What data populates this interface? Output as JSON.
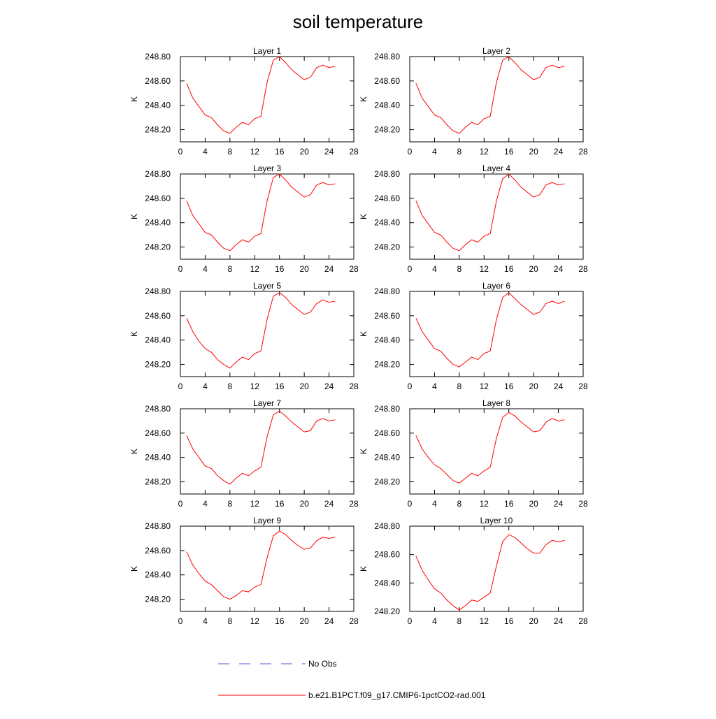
{
  "title": "soil temperature",
  "legend": [
    {
      "label": "No Obs",
      "color": "#5a5ad2",
      "dash": true
    },
    {
      "label": "b.e21.B1PCT.f09_g17.CMIP6-1pctCO2-rad.001",
      "color": "#ff0000",
      "dash": false
    }
  ],
  "chart_data": [
    {
      "type": "line",
      "title": "Layer 1",
      "y_label": "K",
      "x": [
        1,
        2,
        3,
        4,
        5,
        6,
        7,
        8,
        9,
        10,
        11,
        12,
        13,
        14,
        15,
        16,
        17,
        18,
        19,
        20,
        21,
        22,
        23,
        24,
        25
      ],
      "series": [
        {
          "color": "#ff0000",
          "values": [
            248.58,
            248.46,
            248.39,
            248.32,
            248.3,
            248.24,
            248.19,
            248.17,
            248.22,
            248.26,
            248.24,
            248.29,
            248.31,
            248.59,
            248.77,
            248.8,
            248.75,
            248.69,
            248.65,
            248.61,
            248.63,
            248.71,
            248.73,
            248.71,
            248.72
          ]
        }
      ],
      "xlim": [
        0,
        28
      ],
      "xticks": [
        0,
        4,
        8,
        12,
        16,
        20,
        24,
        28
      ],
      "ylim": [
        248.1,
        248.8
      ],
      "yticks": [
        {
          "value": 248.2,
          "label": "248.20"
        },
        {
          "value": 248.4,
          "label": "248.40"
        },
        {
          "value": 248.6,
          "label": "248.60"
        },
        {
          "value": 248.8,
          "label": "248.80"
        }
      ]
    },
    {
      "type": "line",
      "title": "Layer 2",
      "y_label": "K",
      "x": [
        1,
        2,
        3,
        4,
        5,
        6,
        7,
        8,
        9,
        10,
        11,
        12,
        13,
        14,
        15,
        16,
        17,
        18,
        19,
        20,
        21,
        22,
        23,
        24,
        25
      ],
      "series": [
        {
          "color": "#ff0000",
          "values": [
            248.58,
            248.46,
            248.39,
            248.32,
            248.3,
            248.24,
            248.19,
            248.17,
            248.22,
            248.26,
            248.24,
            248.29,
            248.31,
            248.59,
            248.77,
            248.8,
            248.75,
            248.69,
            248.65,
            248.61,
            248.63,
            248.71,
            248.73,
            248.71,
            248.72
          ]
        }
      ],
      "xlim": [
        0,
        28
      ],
      "xticks": [
        0,
        4,
        8,
        12,
        16,
        20,
        24,
        28
      ],
      "ylim": [
        248.1,
        248.8
      ],
      "yticks": [
        {
          "value": 248.2,
          "label": "248.20"
        },
        {
          "value": 248.4,
          "label": "248.40"
        },
        {
          "value": 248.6,
          "label": "248.60"
        },
        {
          "value": 248.8,
          "label": "248.80"
        }
      ]
    },
    {
      "type": "line",
      "title": "Layer 3",
      "y_label": "K",
      "x": [
        1,
        2,
        3,
        4,
        5,
        6,
        7,
        8,
        9,
        10,
        11,
        12,
        13,
        14,
        15,
        16,
        17,
        18,
        19,
        20,
        21,
        22,
        23,
        24,
        25
      ],
      "series": [
        {
          "color": "#ff0000",
          "values": [
            248.58,
            248.46,
            248.39,
            248.32,
            248.3,
            248.24,
            248.19,
            248.17,
            248.22,
            248.26,
            248.24,
            248.29,
            248.31,
            248.58,
            248.77,
            248.8,
            248.75,
            248.69,
            248.65,
            248.61,
            248.63,
            248.71,
            248.73,
            248.71,
            248.72
          ]
        }
      ],
      "xlim": [
        0,
        28
      ],
      "xticks": [
        0,
        4,
        8,
        12,
        16,
        20,
        24,
        28
      ],
      "ylim": [
        248.1,
        248.8
      ],
      "yticks": [
        {
          "value": 248.2,
          "label": "248.20"
        },
        {
          "value": 248.4,
          "label": "248.40"
        },
        {
          "value": 248.6,
          "label": "248.60"
        },
        {
          "value": 248.8,
          "label": "248.80"
        }
      ]
    },
    {
      "type": "line",
      "title": "Layer 4",
      "y_label": "K",
      "x": [
        1,
        2,
        3,
        4,
        5,
        6,
        7,
        8,
        9,
        10,
        11,
        12,
        13,
        14,
        15,
        16,
        17,
        18,
        19,
        20,
        21,
        22,
        23,
        24,
        25
      ],
      "series": [
        {
          "color": "#ff0000",
          "values": [
            248.58,
            248.46,
            248.39,
            248.32,
            248.3,
            248.24,
            248.19,
            248.17,
            248.22,
            248.26,
            248.24,
            248.29,
            248.31,
            248.58,
            248.76,
            248.8,
            248.75,
            248.69,
            248.65,
            248.61,
            248.63,
            248.71,
            248.73,
            248.71,
            248.72
          ]
        }
      ],
      "xlim": [
        0,
        28
      ],
      "xticks": [
        0,
        4,
        8,
        12,
        16,
        20,
        24,
        28
      ],
      "ylim": [
        248.1,
        248.8
      ],
      "yticks": [
        {
          "value": 248.2,
          "label": "248.20"
        },
        {
          "value": 248.4,
          "label": "248.40"
        },
        {
          "value": 248.6,
          "label": "248.60"
        },
        {
          "value": 248.8,
          "label": "248.80"
        }
      ]
    },
    {
      "type": "line",
      "title": "Layer 5",
      "y_label": "K",
      "x": [
        1,
        2,
        3,
        4,
        5,
        6,
        7,
        8,
        9,
        10,
        11,
        12,
        13,
        14,
        15,
        16,
        17,
        18,
        19,
        20,
        21,
        22,
        23,
        24,
        25
      ],
      "series": [
        {
          "color": "#ff0000",
          "values": [
            248.58,
            248.47,
            248.39,
            248.33,
            248.3,
            248.24,
            248.2,
            248.17,
            248.22,
            248.26,
            248.24,
            248.29,
            248.31,
            248.57,
            248.76,
            248.79,
            248.75,
            248.69,
            248.65,
            248.61,
            248.63,
            248.7,
            248.73,
            248.71,
            248.72
          ]
        }
      ],
      "xlim": [
        0,
        28
      ],
      "xticks": [
        0,
        4,
        8,
        12,
        16,
        20,
        24,
        28
      ],
      "ylim": [
        248.1,
        248.8
      ],
      "yticks": [
        {
          "value": 248.2,
          "label": "248.20"
        },
        {
          "value": 248.4,
          "label": "248.40"
        },
        {
          "value": 248.6,
          "label": "248.60"
        },
        {
          "value": 248.8,
          "label": "248.80"
        }
      ]
    },
    {
      "type": "line",
      "title": "Layer 6",
      "y_label": "K",
      "x": [
        1,
        2,
        3,
        4,
        5,
        6,
        7,
        8,
        9,
        10,
        11,
        12,
        13,
        14,
        15,
        16,
        17,
        18,
        19,
        20,
        21,
        22,
        23,
        24,
        25
      ],
      "series": [
        {
          "color": "#ff0000",
          "values": [
            248.58,
            248.47,
            248.4,
            248.33,
            248.31,
            248.25,
            248.2,
            248.18,
            248.22,
            248.26,
            248.24,
            248.29,
            248.31,
            248.57,
            248.75,
            248.79,
            248.74,
            248.69,
            248.65,
            248.61,
            248.63,
            248.7,
            248.72,
            248.7,
            248.72
          ]
        }
      ],
      "xlim": [
        0,
        28
      ],
      "xticks": [
        0,
        4,
        8,
        12,
        16,
        20,
        24,
        28
      ],
      "ylim": [
        248.1,
        248.8
      ],
      "yticks": [
        {
          "value": 248.2,
          "label": "248.20"
        },
        {
          "value": 248.4,
          "label": "248.40"
        },
        {
          "value": 248.6,
          "label": "248.60"
        },
        {
          "value": 248.8,
          "label": "248.80"
        }
      ]
    },
    {
      "type": "line",
      "title": "Layer 7",
      "y_label": "K",
      "x": [
        1,
        2,
        3,
        4,
        5,
        6,
        7,
        8,
        9,
        10,
        11,
        12,
        13,
        14,
        15,
        16,
        17,
        18,
        19,
        20,
        21,
        22,
        23,
        24,
        25
      ],
      "series": [
        {
          "color": "#ff0000",
          "values": [
            248.58,
            248.47,
            248.4,
            248.33,
            248.31,
            248.25,
            248.21,
            248.18,
            248.23,
            248.27,
            248.25,
            248.29,
            248.32,
            248.57,
            248.75,
            248.78,
            248.74,
            248.69,
            248.65,
            248.61,
            248.62,
            248.7,
            248.72,
            248.7,
            248.71
          ]
        }
      ],
      "xlim": [
        0,
        28
      ],
      "xticks": [
        0,
        4,
        8,
        12,
        16,
        20,
        24,
        28
      ],
      "ylim": [
        248.1,
        248.8
      ],
      "yticks": [
        {
          "value": 248.2,
          "label": "248.20"
        },
        {
          "value": 248.4,
          "label": "248.40"
        },
        {
          "value": 248.6,
          "label": "248.60"
        },
        {
          "value": 248.8,
          "label": "248.80"
        }
      ]
    },
    {
      "type": "line",
      "title": "Layer 8",
      "y_label": "K",
      "x": [
        1,
        2,
        3,
        4,
        5,
        6,
        7,
        8,
        9,
        10,
        11,
        12,
        13,
        14,
        15,
        16,
        17,
        18,
        19,
        20,
        21,
        22,
        23,
        24,
        25
      ],
      "series": [
        {
          "color": "#ff0000",
          "values": [
            248.58,
            248.47,
            248.4,
            248.34,
            248.31,
            248.26,
            248.21,
            248.19,
            248.23,
            248.27,
            248.25,
            248.29,
            248.32,
            248.56,
            248.73,
            248.77,
            248.74,
            248.69,
            248.65,
            248.61,
            248.62,
            248.69,
            248.72,
            248.7,
            248.71
          ]
        }
      ],
      "xlim": [
        0,
        28
      ],
      "xticks": [
        0,
        4,
        8,
        12,
        16,
        20,
        24,
        28
      ],
      "ylim": [
        248.1,
        248.8
      ],
      "yticks": [
        {
          "value": 248.2,
          "label": "248.20"
        },
        {
          "value": 248.4,
          "label": "248.40"
        },
        {
          "value": 248.6,
          "label": "248.60"
        },
        {
          "value": 248.8,
          "label": "248.80"
        }
      ]
    },
    {
      "type": "line",
      "title": "Layer 9",
      "y_label": "K",
      "x": [
        1,
        2,
        3,
        4,
        5,
        6,
        7,
        8,
        9,
        10,
        11,
        12,
        13,
        14,
        15,
        16,
        17,
        18,
        19,
        20,
        21,
        22,
        23,
        24,
        25
      ],
      "series": [
        {
          "color": "#ff0000",
          "values": [
            248.59,
            248.48,
            248.41,
            248.35,
            248.32,
            248.27,
            248.22,
            248.2,
            248.23,
            248.27,
            248.26,
            248.3,
            248.32,
            248.54,
            248.72,
            248.76,
            248.73,
            248.68,
            248.64,
            248.61,
            248.62,
            248.68,
            248.71,
            248.7,
            248.71
          ]
        }
      ],
      "xlim": [
        0,
        28
      ],
      "xticks": [
        0,
        4,
        8,
        12,
        16,
        20,
        24,
        28
      ],
      "ylim": [
        248.1,
        248.8
      ],
      "yticks": [
        {
          "value": 248.2,
          "label": "248.20"
        },
        {
          "value": 248.4,
          "label": "248.40"
        },
        {
          "value": 248.6,
          "label": "248.60"
        },
        {
          "value": 248.8,
          "label": "248.80"
        }
      ]
    },
    {
      "type": "line",
      "title": "Layer 10",
      "y_label": "K",
      "x": [
        1,
        2,
        3,
        4,
        5,
        6,
        7,
        8,
        9,
        10,
        11,
        12,
        13,
        14,
        15,
        16,
        17,
        18,
        19,
        20,
        21,
        22,
        23,
        24,
        25
      ],
      "series": [
        {
          "color": "#ff0000",
          "values": [
            248.59,
            248.49,
            248.42,
            248.36,
            248.33,
            248.28,
            248.24,
            248.21,
            248.24,
            248.28,
            248.27,
            248.3,
            248.33,
            248.52,
            248.69,
            248.74,
            248.72,
            248.68,
            248.64,
            248.61,
            248.61,
            248.67,
            248.7,
            248.69,
            248.7
          ]
        }
      ],
      "xlim": [
        0,
        28
      ],
      "xticks": [
        0,
        4,
        8,
        12,
        16,
        20,
        24,
        28
      ],
      "ylim": [
        248.2,
        248.8
      ],
      "yticks": [
        {
          "value": 248.2,
          "label": "248.20"
        },
        {
          "value": 248.4,
          "label": "248.40"
        },
        {
          "value": 248.6,
          "label": "248.60"
        },
        {
          "value": 248.8,
          "label": "248.80"
        }
      ]
    }
  ]
}
